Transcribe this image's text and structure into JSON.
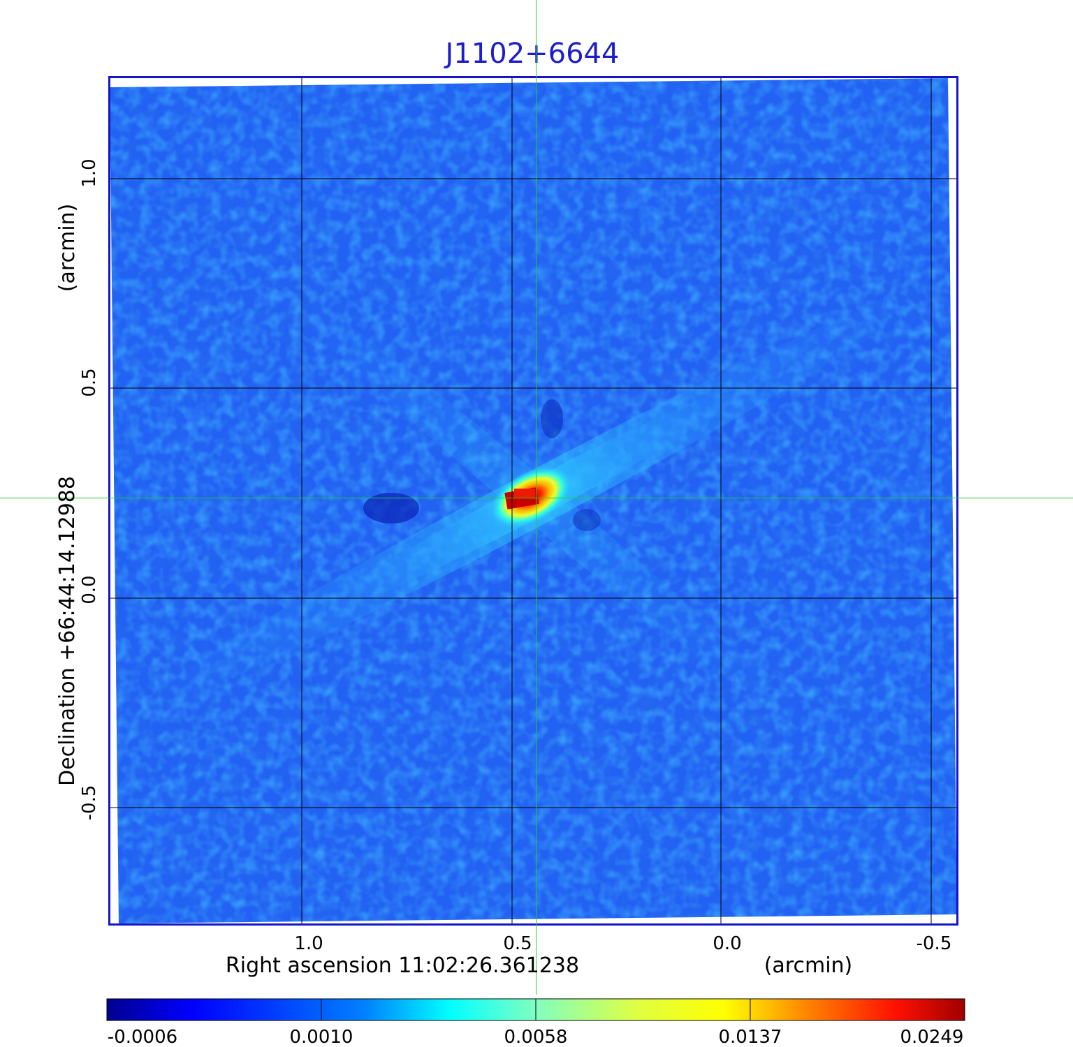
{
  "title": "J1102+6644",
  "axes": {
    "x_label": "Right ascension  11:02:26.361238",
    "x_unit": "(arcmin)",
    "y_label": "Declination  +66:44:14.12988",
    "y_unit": "(arcmin)",
    "x_ticks": [
      "1.0",
      "0.5",
      "0.0",
      "-0.5"
    ],
    "y_ticks": [
      "1.0",
      "0.5",
      "0.0",
      "-0.5"
    ]
  },
  "colorbar": {
    "ticks": [
      "-0.0006",
      "0.0010",
      "0.0058",
      "0.0137",
      "0.0249"
    ],
    "colormap": "jet"
  },
  "colors": {
    "frame": "#1414c8",
    "title": "#1d1dcc",
    "crosshair": "#22d022",
    "grid": "#000000",
    "background_noise": "#1f5ff0",
    "peak": "#d40000"
  }
}
